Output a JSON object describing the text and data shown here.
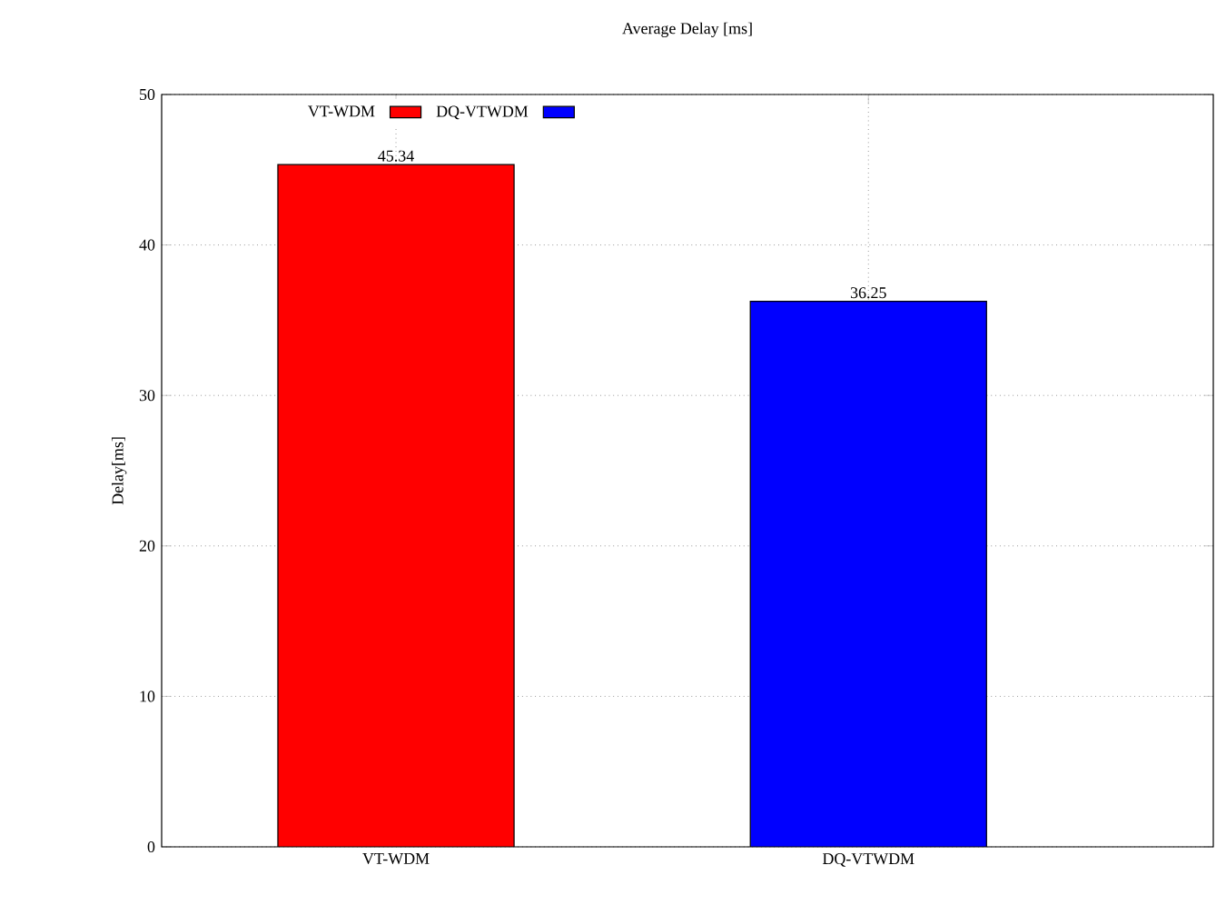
{
  "chart_data": {
    "type": "bar",
    "title": "Average Delay [ms]",
    "ylabel": "Delay[ms]",
    "categories": [
      "VT-WDM",
      "DQ-VTWDM"
    ],
    "series": [
      {
        "name": "VT-WDM",
        "color": "#ff0000",
        "values": [
          45.34,
          null
        ]
      },
      {
        "name": "DQ-VTWDM",
        "color": "#0000ff",
        "values": [
          null,
          36.25
        ]
      }
    ],
    "ylim": [
      0,
      50
    ],
    "yticks": [
      0,
      10,
      20,
      30,
      40,
      50
    ],
    "grid": true,
    "legend": "top left",
    "data_labels": true
  }
}
